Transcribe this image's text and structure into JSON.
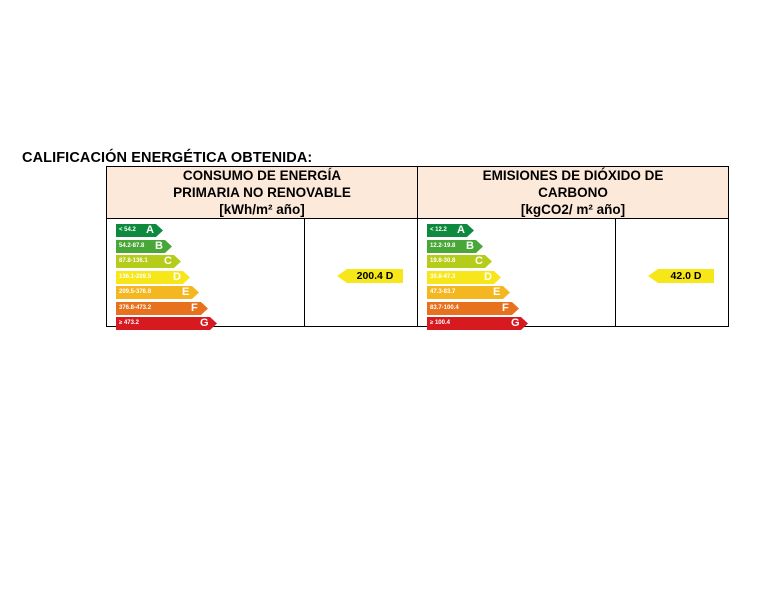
{
  "document": {
    "title": "CALIFICACIÓN ENERGÉTICA OBTENIDA:"
  },
  "panels": [
    {
      "header_lines": [
        "CONSUMO DE ENERGÍA",
        "PRIMARIA NO RENOVABLE",
        "[kWh/m² año]"
      ],
      "scale": [
        {
          "letter": "A",
          "range": "< 54.2",
          "color": "#0e8a3e"
        },
        {
          "letter": "B",
          "range": "54.2-87.8",
          "color": "#49a639"
        },
        {
          "letter": "C",
          "range": "87.8-136.1",
          "color": "#b5cc1b"
        },
        {
          "letter": "D",
          "range": "136.1-209.5",
          "color": "#f7e61a"
        },
        {
          "letter": "E",
          "range": "209.5-376.8",
          "color": "#f4b720"
        },
        {
          "letter": "F",
          "range": "376.8-473.2",
          "color": "#e8711e"
        },
        {
          "letter": "G",
          "range": "≥ 473.2",
          "color": "#d71920"
        }
      ],
      "rating": {
        "value": "200.4",
        "letter": "D",
        "label": "200.4 D",
        "color": "#f7e61a"
      }
    },
    {
      "header_lines": [
        "EMISIONES DE DIÓXIDO DE",
        "CARBONO",
        "[kgCO2/ m² año]"
      ],
      "scale": [
        {
          "letter": "A",
          "range": "< 12.2",
          "color": "#0e8a3e"
        },
        {
          "letter": "B",
          "range": "12.2-19.8",
          "color": "#49a639"
        },
        {
          "letter": "C",
          "range": "19.8-30.8",
          "color": "#b5cc1b"
        },
        {
          "letter": "D",
          "range": "30.8-47.3",
          "color": "#f7e61a"
        },
        {
          "letter": "E",
          "range": "47.3-83.7",
          "color": "#f4b720"
        },
        {
          "letter": "F",
          "range": "83.7-100.4",
          "color": "#e8711e"
        },
        {
          "letter": "G",
          "range": "≥ 100.4",
          "color": "#d71920"
        }
      ],
      "rating": {
        "value": "42.0",
        "letter": "D",
        "label": "42.0 D",
        "color": "#f7e61a"
      }
    }
  ]
}
